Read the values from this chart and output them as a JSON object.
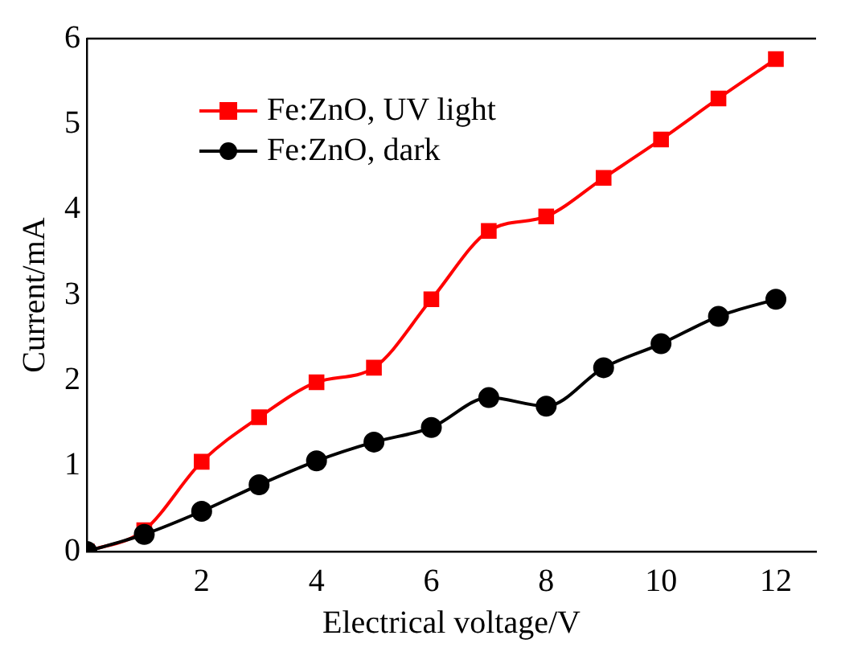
{
  "chart_data": {
    "type": "line",
    "xlabel": "Electrical voltage/V",
    "ylabel": "Current/mA",
    "x": [
      0,
      1,
      2,
      3,
      4,
      5,
      6,
      7,
      8,
      9,
      10,
      11,
      12
    ],
    "series": [
      {
        "name": "Fe:ZnO, UV light",
        "color": "#ff0000",
        "marker": "square",
        "values": [
          0,
          0.25,
          1.05,
          1.57,
          1.98,
          2.15,
          2.95,
          3.75,
          3.92,
          4.37,
          4.82,
          5.3,
          5.76
        ]
      },
      {
        "name": "Fe:ZnO, dark",
        "color": "#000000",
        "marker": "circle",
        "values": [
          0,
          0.2,
          0.47,
          0.78,
          1.06,
          1.28,
          1.45,
          1.8,
          1.7,
          2.15,
          2.43,
          2.75,
          2.95
        ]
      }
    ],
    "xlim": [
      0,
      12.7
    ],
    "xticks": [
      2,
      4,
      6,
      8,
      10,
      12
    ],
    "ylim": [
      0,
      6
    ],
    "yticks": [
      0,
      1,
      2,
      3,
      4,
      5,
      6
    ],
    "grid": false,
    "legend": "top left",
    "line_style": "solid"
  }
}
